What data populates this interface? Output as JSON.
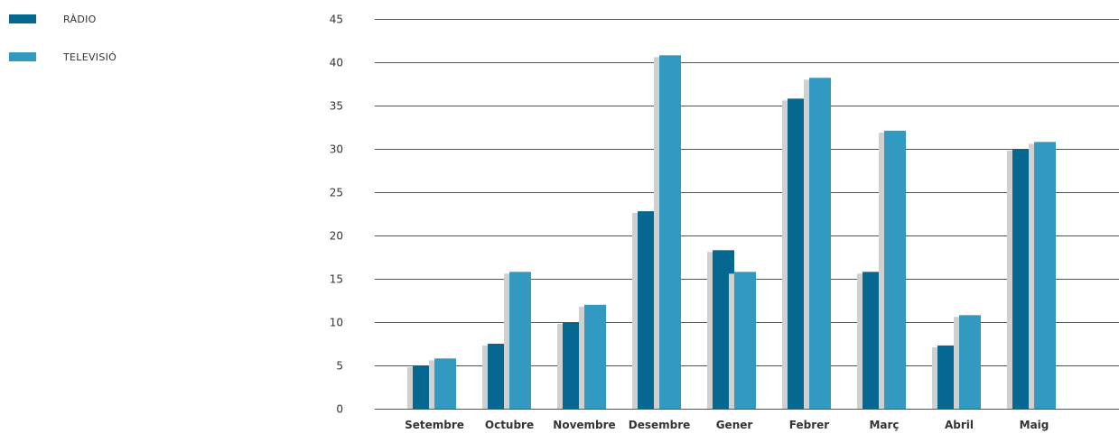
{
  "chart_data": {
    "type": "bar",
    "title": "",
    "xlabel": "",
    "ylabel": "",
    "categories": [
      "Setembre",
      "Octubre",
      "Novembre",
      "Desembre",
      "Gener",
      "Febrer",
      "Març",
      "Abril",
      "Maig"
    ],
    "series": [
      {
        "name": "RÀDIO",
        "color": "#066790",
        "values": [
          5.0,
          7.5,
          10.0,
          22.8,
          18.3,
          35.8,
          15.8,
          7.3,
          30.0
        ]
      },
      {
        "name": "TELEVISIÓ",
        "color": "#329ac1",
        "values": [
          5.8,
          15.8,
          12.0,
          40.8,
          15.8,
          38.2,
          32.1,
          10.8,
          30.8
        ]
      }
    ],
    "ylim": [
      0,
      45
    ],
    "yticks": [
      0,
      5,
      10,
      15,
      20,
      25,
      30,
      35,
      40,
      45
    ],
    "grid": true,
    "legend_position": "top-left",
    "shadow_color": "#d0d0d0"
  }
}
